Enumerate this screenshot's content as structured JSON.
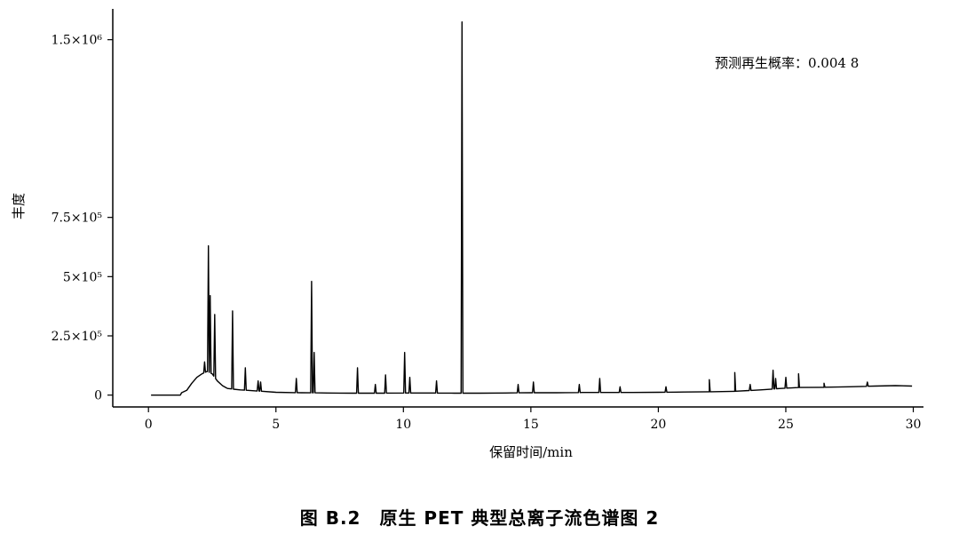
{
  "caption": "图 B.2　原生 PET 典型总离子流色谱图 2",
  "chart_data": {
    "type": "line",
    "title": "",
    "xlabel": "保留时间/min",
    "ylabel": "丰度",
    "xlim": [
      -1.4,
      30.4
    ],
    "ylim": [
      -50000,
      1630000
    ],
    "x_ticks": [
      0,
      5,
      10,
      15,
      20,
      25,
      30
    ],
    "x_tick_labels": [
      "0",
      "5",
      "10",
      "15",
      "20",
      "25",
      "30"
    ],
    "y_ticks": [
      0,
      250000,
      500000,
      750000,
      1500000
    ],
    "y_tick_labels": [
      "0",
      "2.5×10⁵",
      "5×10⁵",
      "7.5×10⁵",
      "1.5×10⁶"
    ],
    "annotation": "预测再生概率：0.004 8",
    "grid": false,
    "legend": "none",
    "line_color": "#000000",
    "baseline": [
      [
        0.1,
        0
      ],
      [
        1.25,
        0
      ],
      [
        1.3,
        10000
      ],
      [
        1.5,
        20000
      ],
      [
        1.7,
        50000
      ],
      [
        1.9,
        75000
      ],
      [
        2.1,
        90000
      ],
      [
        2.3,
        100000
      ],
      [
        2.5,
        90000
      ],
      [
        2.7,
        60000
      ],
      [
        2.9,
        40000
      ],
      [
        3.1,
        28000
      ],
      [
        3.6,
        22000
      ],
      [
        4.2,
        18000
      ],
      [
        5.0,
        12000
      ],
      [
        6.0,
        10000
      ],
      [
        7.0,
        9000
      ],
      [
        8.0,
        8000
      ],
      [
        9.0,
        8000
      ],
      [
        10.0,
        9000
      ],
      [
        11.0,
        9000
      ],
      [
        12.0,
        8000
      ],
      [
        13.0,
        8000
      ],
      [
        14.0,
        9000
      ],
      [
        15.0,
        10000
      ],
      [
        16.0,
        10000
      ],
      [
        17.0,
        11000
      ],
      [
        18.0,
        11000
      ],
      [
        19.0,
        11000
      ],
      [
        20.0,
        12000
      ],
      [
        21.0,
        13000
      ],
      [
        22.0,
        14000
      ],
      [
        23.0,
        16000
      ],
      [
        24.0,
        22000
      ],
      [
        24.8,
        28000
      ],
      [
        25.5,
        32000
      ],
      [
        26.5,
        33000
      ],
      [
        27.5,
        35000
      ],
      [
        28.5,
        38000
      ],
      [
        29.3,
        40000
      ],
      [
        29.95,
        38000
      ]
    ],
    "peaks": [
      [
        2.2,
        140000
      ],
      [
        2.35,
        630000
      ],
      [
        2.42,
        420000
      ],
      [
        2.6,
        340000
      ],
      [
        3.3,
        355000
      ],
      [
        3.8,
        115000
      ],
      [
        4.3,
        60000
      ],
      [
        4.4,
        55000
      ],
      [
        5.8,
        70000
      ],
      [
        6.4,
        480000
      ],
      [
        6.5,
        180000
      ],
      [
        8.2,
        115000
      ],
      [
        8.9,
        45000
      ],
      [
        9.3,
        85000
      ],
      [
        10.05,
        180000
      ],
      [
        10.25,
        75000
      ],
      [
        11.3,
        60000
      ],
      [
        12.3,
        1575000
      ],
      [
        14.5,
        45000
      ],
      [
        15.1,
        55000
      ],
      [
        16.9,
        45000
      ],
      [
        17.7,
        70000
      ],
      [
        18.5,
        35000
      ],
      [
        20.3,
        35000
      ],
      [
        22.0,
        65000
      ],
      [
        23.0,
        95000
      ],
      [
        23.6,
        45000
      ],
      [
        24.5,
        105000
      ],
      [
        24.6,
        70000
      ],
      [
        25.0,
        75000
      ],
      [
        25.5,
        90000
      ],
      [
        26.5,
        50000
      ],
      [
        28.2,
        55000
      ]
    ]
  }
}
